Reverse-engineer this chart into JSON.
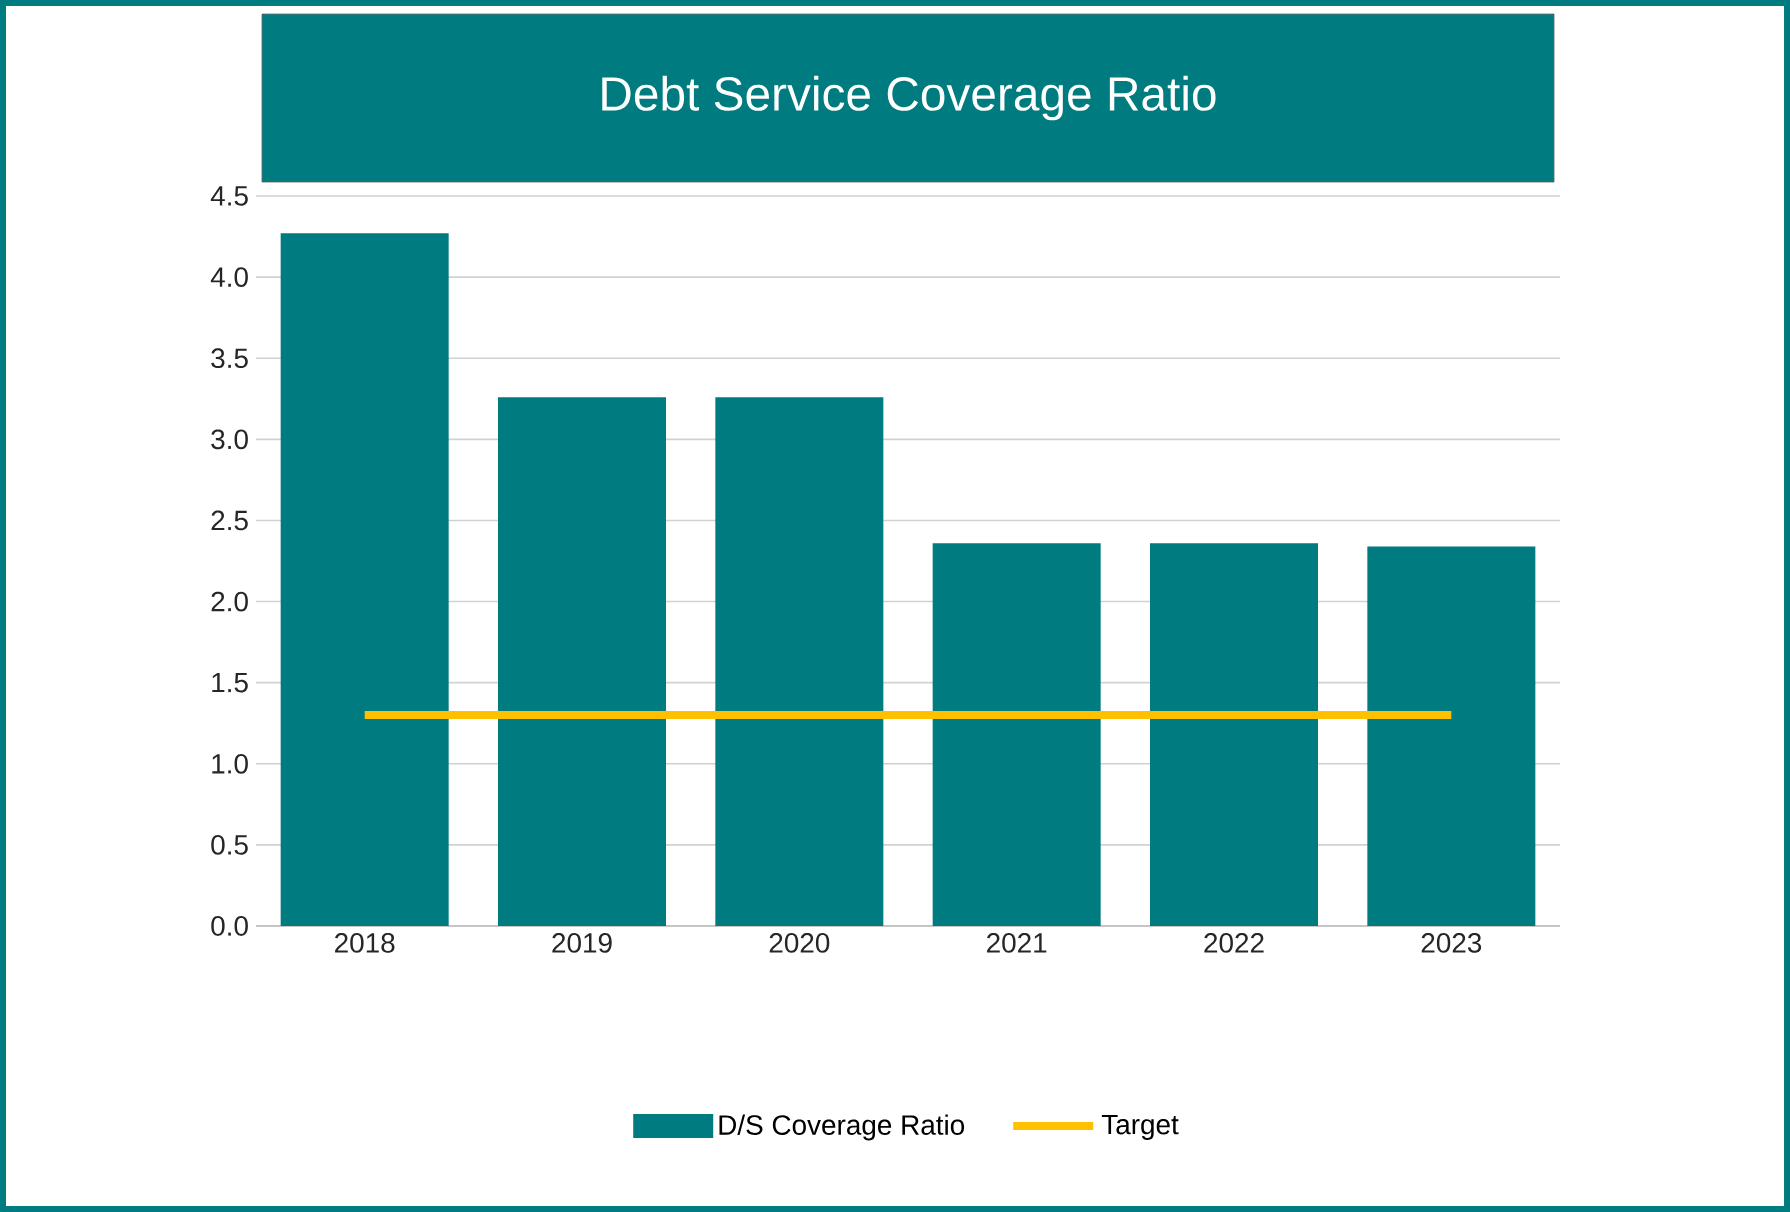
{
  "chart_data": {
    "type": "bar",
    "title": "Debt Service Coverage Ratio",
    "categories": [
      "2018",
      "2019",
      "2020",
      "2021",
      "2022",
      "2023"
    ],
    "series": [
      {
        "name": "D/S Coverage Ratio",
        "color": "#007b80",
        "values": [
          4.27,
          3.26,
          3.26,
          2.36,
          2.36,
          2.34
        ]
      },
      {
        "name": "Target",
        "type": "line",
        "color": "#ffc000",
        "values": [
          1.3,
          1.3,
          1.3,
          1.3,
          1.3,
          1.3
        ]
      }
    ],
    "ylim": [
      0,
      4.5
    ],
    "yticks": [
      {
        "value": 0,
        "label": "0.0"
      },
      {
        "value": 0.5,
        "label": "0.5"
      },
      {
        "value": 1,
        "label": "1.0"
      },
      {
        "value": 1.5,
        "label": "1.5"
      },
      {
        "value": 2,
        "label": "2.0"
      },
      {
        "value": 2.5,
        "label": "2.5"
      },
      {
        "value": 3,
        "label": "3.0"
      },
      {
        "value": 3.5,
        "label": "3.5"
      },
      {
        "value": 4,
        "label": "4.0"
      },
      {
        "value": 4.5,
        "label": "4.5"
      }
    ],
    "grid": "y",
    "legend": "bottom",
    "marker": "none",
    "line_style": "solid"
  }
}
